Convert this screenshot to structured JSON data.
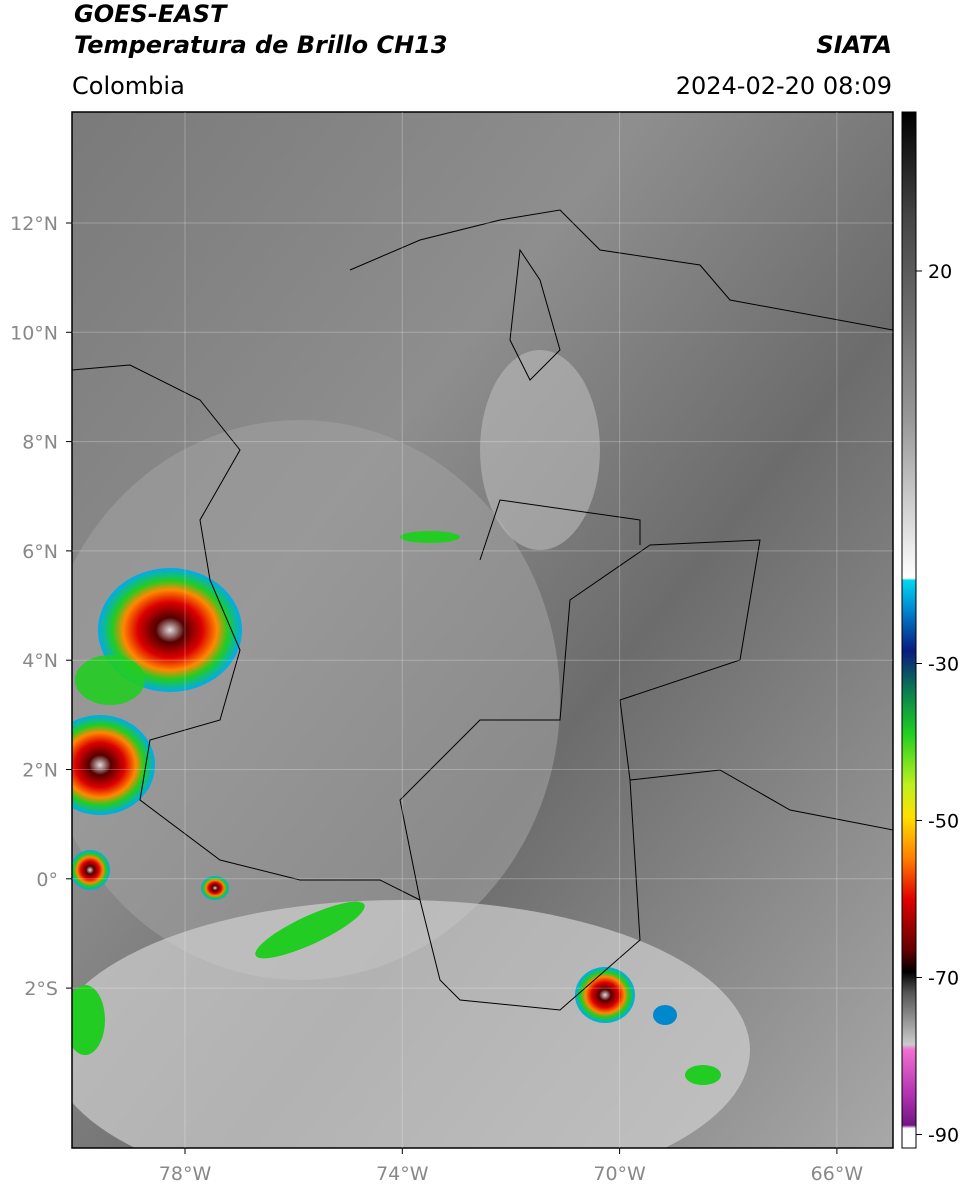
{
  "header": {
    "satellite": "GOES-EAST",
    "product": "Temperatura de Brillo CH13",
    "region": "Colombia",
    "source": "SIATA",
    "datetime": "2024-02-20 08:09"
  },
  "map": {
    "lat_labels": [
      "12°N",
      "10°N",
      "8°N",
      "6°N",
      "4°N",
      "2°N",
      "0°",
      "2°S"
    ],
    "lon_labels": [
      "78°W",
      "74°W",
      "70°W",
      "66°W"
    ]
  },
  "colorbar": {
    "ticks": [
      20,
      -30,
      -50,
      -70,
      -90
    ]
  }
}
